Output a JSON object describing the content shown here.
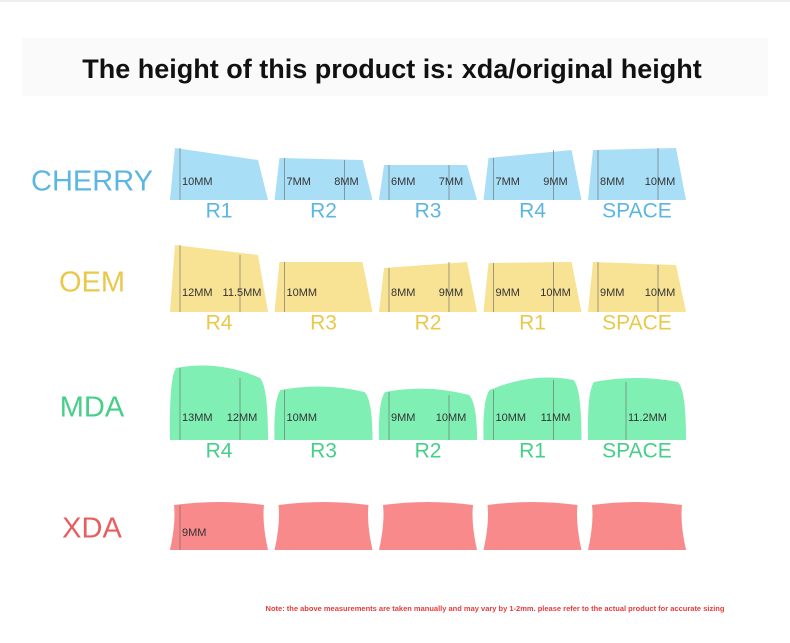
{
  "title": "The height of this product is: xda/original height",
  "profiles": [
    {
      "name": "CHERRY",
      "fill": "#a9def7",
      "text_color": "#5bb6e3",
      "keys": [
        {
          "row": "R1",
          "measures": [
            "10MM"
          ]
        },
        {
          "row": "R2",
          "measures": [
            "7MM",
            "8MM"
          ]
        },
        {
          "row": "R3",
          "measures": [
            "6MM",
            "7MM"
          ]
        },
        {
          "row": "R4",
          "measures": [
            "7MM",
            "9MM"
          ]
        },
        {
          "row": "SPACE",
          "measures": [
            "8MM",
            "10MM"
          ]
        }
      ]
    },
    {
      "name": "OEM",
      "fill": "#f8e294",
      "text_color": "#e9c84a",
      "keys": [
        {
          "row": "R4",
          "measures": [
            "12MM",
            "11.5MM"
          ]
        },
        {
          "row": "R3",
          "measures": [
            "10MM"
          ]
        },
        {
          "row": "R2",
          "measures": [
            "8MM",
            "9MM"
          ]
        },
        {
          "row": "R1",
          "measures": [
            "9MM",
            "10MM"
          ]
        },
        {
          "row": "SPACE",
          "measures": [
            "9MM",
            "10MM"
          ]
        }
      ]
    },
    {
      "name": "MDA",
      "fill": "#80efb3",
      "text_color": "#45cf88",
      "keys": [
        {
          "row": "R4",
          "measures": [
            "13MM",
            "12MM"
          ]
        },
        {
          "row": "R3",
          "measures": [
            "10MM"
          ]
        },
        {
          "row": "R2",
          "measures": [
            "9MM",
            "10MM"
          ]
        },
        {
          "row": "R1",
          "measures": [
            "10MM",
            "11MM"
          ]
        },
        {
          "row": "SPACE",
          "measures": [
            "11.2MM"
          ]
        }
      ]
    },
    {
      "name": "XDA",
      "fill": "#f88a8b",
      "text_color": "#e95c5f",
      "keys": [
        {
          "measures": [
            "9MM"
          ]
        },
        {
          "measures": []
        },
        {
          "measures": []
        },
        {
          "measures": []
        },
        {
          "measures": []
        }
      ]
    }
  ],
  "note": "Note: the above measurements are taken manually and may vary by 1-2mm. please refer to the actual product for accurate sizing"
}
